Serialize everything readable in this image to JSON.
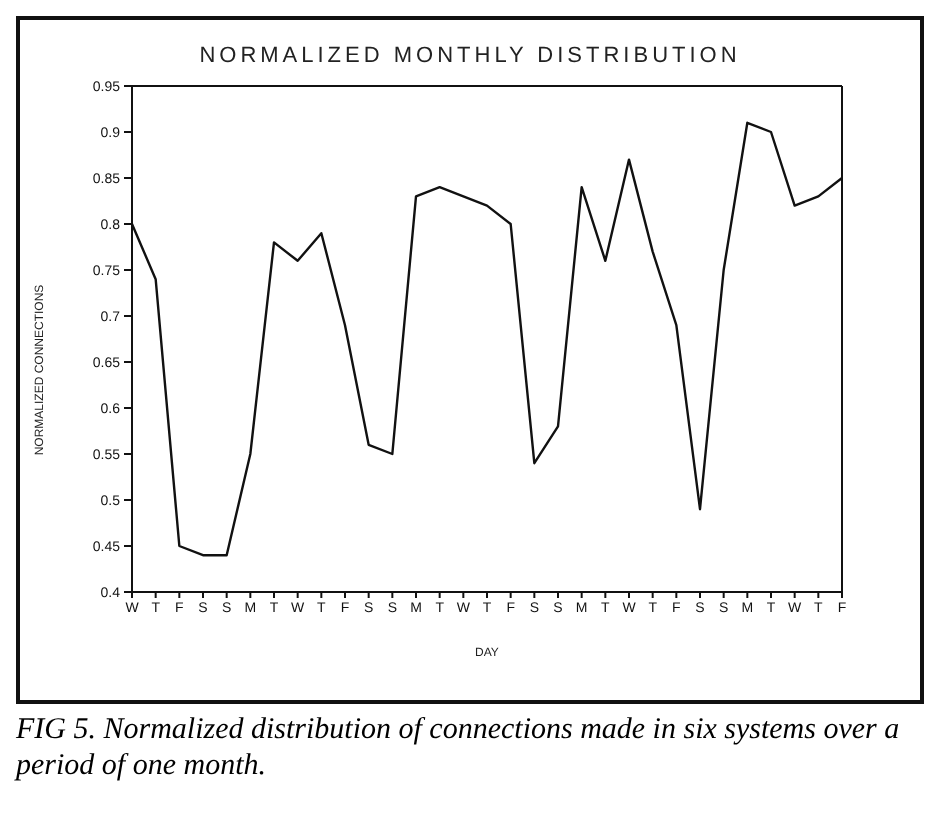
{
  "chart_data": {
    "type": "line",
    "title": "NORMALIZED MONTHLY DISTRIBUTION",
    "xlabel": "DAY",
    "ylabel": "NORMALIZED CONNECTIONS",
    "categories": [
      "W",
      "T",
      "F",
      "S",
      "S",
      "M",
      "T",
      "W",
      "T",
      "F",
      "S",
      "S",
      "M",
      "T",
      "W",
      "T",
      "F",
      "S",
      "S",
      "M",
      "T",
      "W",
      "T",
      "F",
      "S",
      "S",
      "M",
      "T",
      "W",
      "T",
      "F"
    ],
    "series": [
      {
        "color": "#111111",
        "values": [
          0.8,
          0.74,
          0.45,
          0.44,
          0.44,
          0.55,
          0.78,
          0.76,
          0.79,
          0.69,
          0.56,
          0.55,
          0.83,
          0.84,
          0.83,
          0.82,
          0.8,
          0.54,
          0.58,
          0.84,
          0.76,
          0.87,
          0.77,
          0.69,
          0.49,
          0.75,
          0.91,
          0.9,
          0.82,
          0.83,
          0.85
        ]
      }
    ],
    "ylim": [
      0.4,
      0.95
    ],
    "yticks": [
      0.4,
      0.45,
      0.5,
      0.55,
      0.6,
      0.65,
      0.7,
      0.75,
      0.8,
      0.85,
      0.9,
      0.95
    ],
    "grid": false,
    "legend": false,
    "marker": "none",
    "line_style": "solid",
    "annotations": [
      "FIG 5. Normalized distribution of connections made in six systems over a period of one month."
    ]
  }
}
